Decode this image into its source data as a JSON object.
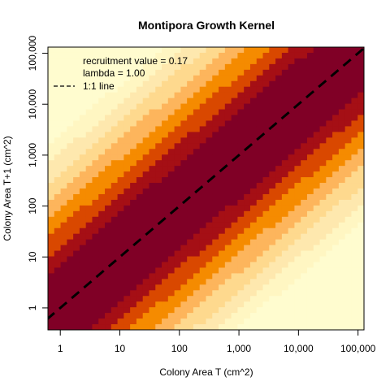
{
  "chart_data": {
    "type": "heatmap",
    "title": "Montipora Growth Kernel",
    "xlabel": "Colony Area T (cm^2)",
    "ylabel": "Colony Area T+1 (cm^2)",
    "x_scale": "log10",
    "y_scale": "log10",
    "xlim": [
      0.62,
      126000
    ],
    "ylim": [
      0.37,
      132000
    ],
    "x_ticks": [
      1,
      10,
      100,
      1000,
      10000,
      100000
    ],
    "x_tick_labels": [
      "1",
      "10",
      "100",
      "1,000",
      "10,000",
      "100,000"
    ],
    "y_ticks": [
      1,
      10,
      100,
      1000,
      10000,
      100000
    ],
    "y_tick_labels": [
      "1",
      "10",
      "100",
      "1,000",
      "10,000",
      "100,000"
    ],
    "grid": false,
    "colormap": "heat (dark red high, pale yellow low)",
    "palette": [
      "#800026",
      "#A50F15",
      "#D94800",
      "#F58B00",
      "#FDB55C",
      "#FED98E",
      "#FEE8AE",
      "#FFF6C2",
      "#FFFCCF"
    ],
    "kernel_pattern": "density highest along the 1:1 diagonal (next-year size equal to current size), decreasing with distance from the diagonal",
    "annotations": [
      "recruitment value = 0.17",
      "lambda = 1.00"
    ],
    "recruitment_value": 0.17,
    "lambda": 1.0,
    "reference_line": {
      "label": "1:1 line",
      "style": "dashed",
      "color": "#000000",
      "slope": 1
    },
    "legend_position": "top-left"
  }
}
